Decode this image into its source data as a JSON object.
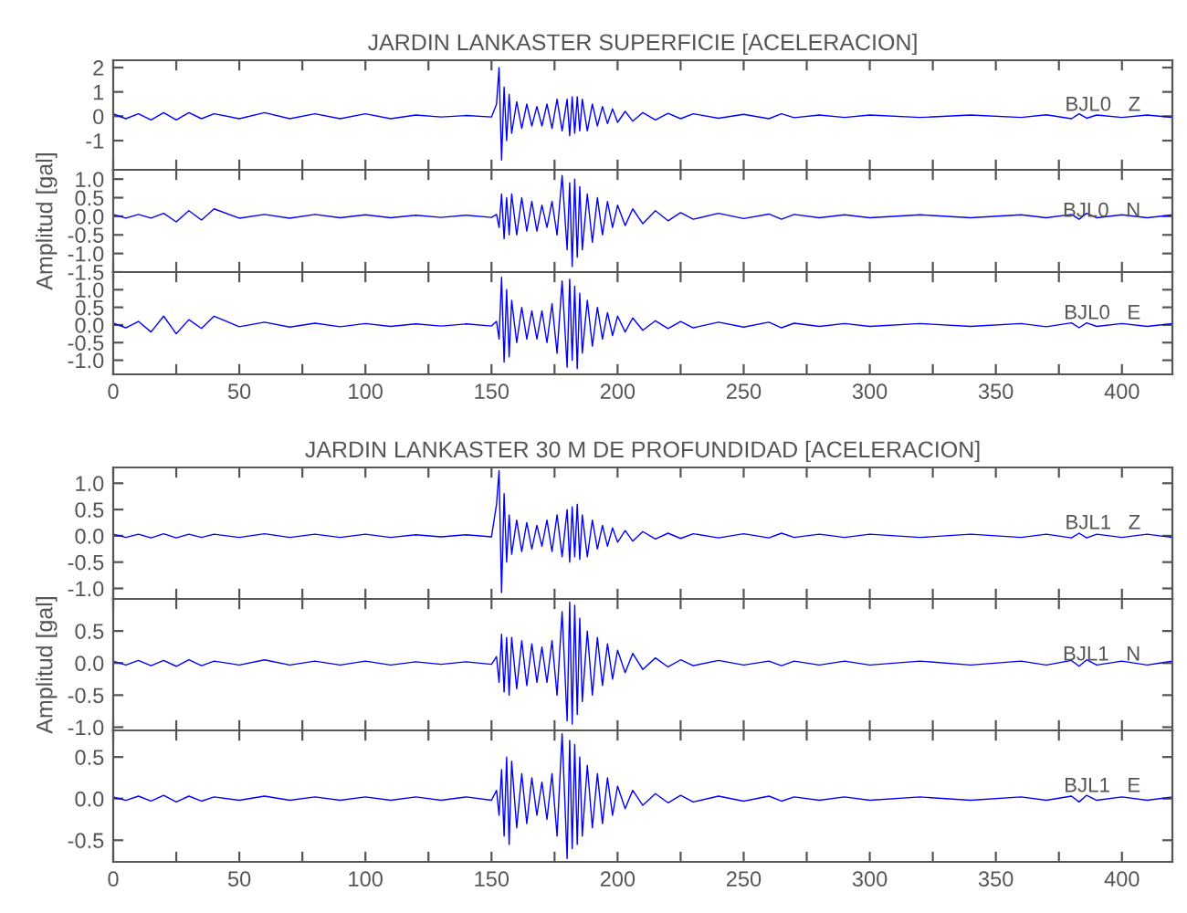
{
  "chart_data": [
    {
      "type": "line",
      "title": "JARDIN LANKASTER SUPERFICIE [ACELERACION]",
      "xlim": [
        0,
        420
      ],
      "ylim": [
        -2.2,
        2.3
      ],
      "yticks": [
        2,
        1,
        0,
        -1
      ],
      "tick_labels": "y",
      "grid": false,
      "legend": false,
      "marker": "none",
      "line_style": "solid",
      "xticks": [
        0,
        {
          "value": 25,
          "label": null
        },
        50,
        {
          "value": 75,
          "label": null
        },
        100,
        {
          "value": 125,
          "label": null
        },
        150,
        {
          "value": 175,
          "label": null
        },
        200,
        {
          "value": 225,
          "label": null
        },
        250,
        {
          "value": 275,
          "label": null
        },
        300,
        {
          "value": 325,
          "label": null
        },
        350,
        {
          "value": 375,
          "label": null
        },
        400
      ],
      "x": [
        0,
        5,
        10,
        15,
        20,
        25,
        30,
        35,
        40,
        50,
        60,
        70,
        80,
        90,
        100,
        110,
        120,
        130,
        140,
        150,
        152,
        153,
        154,
        155,
        156,
        157,
        158,
        160,
        162,
        164,
        166,
        168,
        170,
        172,
        174,
        176,
        178,
        180,
        181,
        182,
        183,
        184,
        185,
        186,
        188,
        190,
        192,
        194,
        196,
        198,
        200,
        203,
        206,
        210,
        215,
        220,
        225,
        230,
        240,
        250,
        260,
        265,
        270,
        280,
        290,
        300,
        320,
        340,
        360,
        370,
        380,
        383,
        386,
        390,
        400,
        410,
        420
      ],
      "series": [
        {
          "name": "BJL0   Z",
          "color": "#0000ff",
          "values": [
            0.1,
            -0.1,
            0.1,
            -0.15,
            0.15,
            -0.15,
            0.15,
            -0.1,
            0.1,
            -0.1,
            0.15,
            -0.1,
            0.1,
            -0.1,
            0.1,
            -0.1,
            0.05,
            -0.03,
            0.03,
            -0.03,
            0.5,
            2.0,
            -1.8,
            1.2,
            -1.0,
            0.9,
            -0.7,
            0.6,
            -0.5,
            0.5,
            -0.4,
            0.4,
            -0.4,
            0.5,
            -0.5,
            0.7,
            -0.6,
            0.7,
            -0.8,
            0.8,
            -0.7,
            0.8,
            -0.6,
            0.7,
            -0.6,
            0.5,
            -0.4,
            0.4,
            -0.3,
            0.3,
            -0.25,
            0.2,
            -0.2,
            0.15,
            -0.15,
            0.12,
            -0.1,
            0.1,
            -0.08,
            0.08,
            -0.1,
            0.1,
            -0.06,
            0.05,
            -0.05,
            0.05,
            -0.05,
            0.05,
            -0.05,
            0.06,
            -0.1,
            0.1,
            -0.08,
            0.05,
            -0.05,
            0.05,
            -0.05
          ]
        }
      ]
    },
    {
      "type": "line",
      "ylabel": "Amplitud [gal]",
      "xlim": [
        0,
        420
      ],
      "ylim": [
        -1.5,
        1.25
      ],
      "yticks": [
        {
          "value": 1,
          "label": "1.0"
        },
        0.5,
        {
          "value": 0,
          "label": "0.0"
        },
        -0.5,
        {
          "value": -1,
          "label": "-1.0"
        },
        -1.5
      ],
      "tick_labels": "y",
      "grid": false,
      "legend": false,
      "marker": "none",
      "line_style": "solid",
      "xticks": [
        0,
        {
          "value": 25,
          "label": null
        },
        50,
        {
          "value": 75,
          "label": null
        },
        100,
        {
          "value": 125,
          "label": null
        },
        150,
        {
          "value": 175,
          "label": null
        },
        200,
        {
          "value": 225,
          "label": null
        },
        250,
        {
          "value": 275,
          "label": null
        },
        300,
        {
          "value": 325,
          "label": null
        },
        350,
        {
          "value": 375,
          "label": null
        },
        400
      ],
      "x": [
        0,
        5,
        10,
        15,
        20,
        25,
        30,
        35,
        40,
        50,
        60,
        70,
        80,
        90,
        100,
        110,
        120,
        130,
        140,
        150,
        152,
        153,
        154,
        155,
        156,
        157,
        158,
        160,
        162,
        164,
        166,
        168,
        170,
        172,
        174,
        176,
        178,
        180,
        181,
        182,
        183,
        184,
        185,
        186,
        188,
        190,
        192,
        194,
        196,
        198,
        200,
        203,
        206,
        210,
        215,
        220,
        225,
        230,
        240,
        250,
        260,
        265,
        270,
        280,
        290,
        300,
        320,
        340,
        360,
        370,
        380,
        383,
        386,
        390,
        400,
        410,
        420
      ],
      "series": [
        {
          "name": "BJL0   N",
          "color": "#0000ff",
          "values": [
            0.05,
            -0.05,
            0.05,
            -0.05,
            0.08,
            -0.15,
            0.15,
            -0.1,
            0.2,
            -0.05,
            0.05,
            -0.05,
            0.05,
            -0.04,
            0.04,
            -0.04,
            0.03,
            -0.03,
            0.03,
            -0.03,
            0.05,
            -0.3,
            0.6,
            -0.6,
            0.5,
            -0.5,
            0.6,
            -0.5,
            0.5,
            -0.4,
            0.4,
            -0.4,
            0.3,
            -0.3,
            0.4,
            -0.5,
            1.1,
            -0.9,
            0.9,
            -1.35,
            1.0,
            -1.1,
            0.8,
            -0.9,
            0.6,
            -0.7,
            0.5,
            -0.5,
            0.4,
            -0.3,
            0.3,
            -0.25,
            0.2,
            -0.2,
            0.15,
            -0.12,
            0.1,
            -0.08,
            0.08,
            -0.06,
            0.06,
            -0.08,
            0.05,
            -0.04,
            0.04,
            -0.04,
            0.04,
            -0.04,
            0.04,
            -0.04,
            0.05,
            -0.08,
            0.08,
            -0.04,
            0.04,
            -0.04,
            0.04
          ]
        }
      ]
    },
    {
      "type": "line",
      "xlim": [
        0,
        420
      ],
      "ylim": [
        -1.4,
        1.5
      ],
      "yticks": [
        {
          "value": 1,
          "label": "1.0"
        },
        0.5,
        {
          "value": 0,
          "label": "0.0"
        },
        -0.5,
        {
          "value": -1,
          "label": "-1.0"
        }
      ],
      "grid": false,
      "legend": false,
      "marker": "none",
      "line_style": "solid",
      "xticks": [
        0,
        {
          "value": 25,
          "label": null
        },
        50,
        {
          "value": 75,
          "label": null
        },
        100,
        {
          "value": 125,
          "label": null
        },
        150,
        {
          "value": 175,
          "label": null
        },
        200,
        {
          "value": 225,
          "label": null
        },
        250,
        {
          "value": 275,
          "label": null
        },
        300,
        {
          "value": 325,
          "label": null
        },
        350,
        {
          "value": 375,
          "label": null
        },
        400
      ],
      "x": [
        0,
        5,
        10,
        15,
        20,
        25,
        30,
        35,
        40,
        50,
        60,
        70,
        80,
        90,
        100,
        110,
        120,
        130,
        140,
        150,
        152,
        153,
        154,
        155,
        156,
        157,
        158,
        160,
        162,
        164,
        166,
        168,
        170,
        172,
        174,
        176,
        178,
        180,
        181,
        182,
        183,
        184,
        185,
        186,
        188,
        190,
        192,
        194,
        196,
        198,
        200,
        203,
        206,
        210,
        215,
        220,
        225,
        230,
        240,
        250,
        260,
        265,
        270,
        280,
        290,
        300,
        320,
        340,
        360,
        370,
        380,
        383,
        386,
        390,
        400,
        410,
        420
      ],
      "series": [
        {
          "name": "BJL0   E",
          "color": "#0000ff",
          "values": [
            0.05,
            -0.08,
            0.1,
            -0.2,
            0.25,
            -0.25,
            0.15,
            -0.1,
            0.25,
            -0.05,
            0.08,
            -0.06,
            0.05,
            -0.05,
            0.04,
            -0.04,
            0.03,
            -0.03,
            0.03,
            -0.03,
            0.1,
            -0.4,
            1.35,
            -1.05,
            1.0,
            -0.9,
            0.7,
            -0.5,
            0.5,
            -0.4,
            0.4,
            -0.4,
            0.4,
            -0.5,
            0.6,
            -0.8,
            1.25,
            -1.2,
            1.3,
            -1.0,
            1.1,
            -1.24,
            0.9,
            -0.8,
            0.7,
            -0.6,
            0.5,
            -0.4,
            0.35,
            -0.3,
            0.25,
            -0.2,
            0.2,
            -0.15,
            0.12,
            -0.1,
            0.1,
            -0.08,
            0.08,
            -0.06,
            0.08,
            -0.08,
            0.05,
            -0.04,
            0.04,
            -0.04,
            0.04,
            -0.04,
            0.04,
            -0.05,
            0.06,
            -0.08,
            0.06,
            -0.04,
            0.04,
            -0.04,
            0.04
          ]
        }
      ]
    },
    {
      "type": "line",
      "title": "JARDIN LANKASTER 30 M DE PROFUNDIDAD [ACELERACION]",
      "xlim": [
        0,
        420
      ],
      "ylim": [
        -1.2,
        1.3
      ],
      "yticks": [
        {
          "value": 1,
          "label": "1.0"
        },
        0.5,
        {
          "value": 0,
          "label": "0.0"
        },
        -0.5,
        {
          "value": -1,
          "label": "-1.0"
        }
      ],
      "tick_labels": "y",
      "grid": false,
      "legend": false,
      "marker": "none",
      "line_style": "solid",
      "xticks": [
        0,
        {
          "value": 25,
          "label": null
        },
        50,
        {
          "value": 75,
          "label": null
        },
        100,
        {
          "value": 125,
          "label": null
        },
        150,
        {
          "value": 175,
          "label": null
        },
        200,
        {
          "value": 225,
          "label": null
        },
        250,
        {
          "value": 275,
          "label": null
        },
        300,
        {
          "value": 325,
          "label": null
        },
        350,
        {
          "value": 375,
          "label": null
        },
        400
      ],
      "x": [
        0,
        5,
        10,
        15,
        20,
        25,
        30,
        35,
        40,
        50,
        60,
        70,
        80,
        90,
        100,
        110,
        120,
        130,
        140,
        150,
        152,
        153,
        154,
        155,
        156,
        157,
        158,
        160,
        162,
        164,
        166,
        168,
        170,
        172,
        174,
        176,
        178,
        180,
        181,
        182,
        183,
        184,
        185,
        186,
        188,
        190,
        192,
        194,
        196,
        198,
        200,
        203,
        206,
        210,
        215,
        220,
        225,
        230,
        240,
        250,
        260,
        265,
        270,
        280,
        290,
        300,
        320,
        340,
        360,
        370,
        380,
        383,
        386,
        390,
        400,
        410,
        420
      ],
      "series": [
        {
          "name": "BJL1   Z",
          "color": "#0000ff",
          "values": [
            0.03,
            -0.03,
            0.03,
            -0.04,
            0.04,
            -0.04,
            0.03,
            -0.03,
            0.03,
            -0.03,
            0.04,
            -0.03,
            0.03,
            -0.03,
            0.03,
            -0.03,
            0.02,
            -0.02,
            0.02,
            -0.02,
            0.6,
            1.24,
            -1.08,
            0.8,
            -0.5,
            0.4,
            -0.35,
            0.3,
            -0.3,
            0.25,
            -0.25,
            0.2,
            -0.2,
            0.3,
            -0.3,
            0.4,
            -0.4,
            0.5,
            -0.5,
            0.55,
            -0.4,
            0.6,
            -0.45,
            0.4,
            -0.4,
            0.3,
            -0.25,
            0.2,
            -0.2,
            0.15,
            -0.12,
            0.1,
            -0.1,
            0.08,
            -0.06,
            0.05,
            -0.05,
            0.04,
            -0.04,
            0.04,
            -0.04,
            0.05,
            -0.03,
            0.03,
            -0.03,
            0.03,
            -0.03,
            0.03,
            -0.03,
            0.03,
            -0.04,
            0.05,
            -0.04,
            0.03,
            -0.03,
            0.03,
            -0.03
          ]
        }
      ]
    },
    {
      "type": "line",
      "ylabel": "Amplitud [gal]",
      "xlim": [
        0,
        420
      ],
      "ylim": [
        -1.05,
        1.0
      ],
      "yticks": [
        0.5,
        {
          "value": 0,
          "label": "0.0"
        },
        -0.5,
        {
          "value": -1,
          "label": "-1.0"
        }
      ],
      "tick_labels": "y",
      "grid": false,
      "legend": false,
      "marker": "none",
      "line_style": "solid",
      "xticks": [
        0,
        {
          "value": 25,
          "label": null
        },
        50,
        {
          "value": 75,
          "label": null
        },
        100,
        {
          "value": 125,
          "label": null
        },
        150,
        {
          "value": 175,
          "label": null
        },
        200,
        {
          "value": 225,
          "label": null
        },
        250,
        {
          "value": 275,
          "label": null
        },
        300,
        {
          "value": 325,
          "label": null
        },
        350,
        {
          "value": 375,
          "label": null
        },
        400
      ],
      "x": [
        0,
        5,
        10,
        15,
        20,
        25,
        30,
        35,
        40,
        50,
        60,
        70,
        80,
        90,
        100,
        110,
        120,
        130,
        140,
        150,
        152,
        153,
        154,
        155,
        156,
        157,
        158,
        160,
        162,
        164,
        166,
        168,
        170,
        172,
        174,
        176,
        178,
        180,
        181,
        182,
        183,
        184,
        185,
        186,
        188,
        190,
        192,
        194,
        196,
        198,
        200,
        203,
        206,
        210,
        215,
        220,
        225,
        230,
        240,
        250,
        260,
        265,
        270,
        280,
        290,
        300,
        320,
        340,
        360,
        370,
        380,
        383,
        386,
        390,
        400,
        410,
        420
      ],
      "series": [
        {
          "name": "BJL1   N",
          "color": "#0000ff",
          "values": [
            0.03,
            -0.03,
            0.04,
            -0.04,
            0.04,
            -0.05,
            0.05,
            -0.04,
            0.03,
            -0.03,
            0.05,
            -0.03,
            0.03,
            -0.03,
            0.03,
            -0.03,
            0.02,
            -0.02,
            0.02,
            -0.02,
            0.1,
            -0.3,
            0.45,
            -0.45,
            0.4,
            -0.5,
            0.4,
            -0.4,
            0.35,
            -0.35,
            0.3,
            -0.3,
            0.25,
            -0.3,
            0.35,
            -0.5,
            0.8,
            -0.9,
            0.95,
            -0.95,
            0.9,
            -0.8,
            0.7,
            -0.6,
            0.5,
            -0.5,
            0.4,
            -0.35,
            0.3,
            -0.25,
            0.2,
            -0.15,
            0.15,
            -0.1,
            0.08,
            -0.06,
            0.05,
            -0.04,
            0.04,
            -0.03,
            0.03,
            -0.04,
            0.03,
            -0.03,
            0.03,
            -0.03,
            0.03,
            -0.03,
            0.03,
            -0.03,
            0.04,
            -0.05,
            0.05,
            -0.03,
            0.03,
            -0.03,
            0.03
          ]
        }
      ]
    },
    {
      "type": "line",
      "xlim": [
        0,
        420
      ],
      "ylim": [
        -0.76,
        0.82
      ],
      "yticks": [
        0.5,
        {
          "value": 0,
          "label": "0.0"
        },
        -0.5
      ],
      "grid": false,
      "legend": false,
      "marker": "none",
      "line_style": "solid",
      "xticks": [
        0,
        {
          "value": 25,
          "label": null
        },
        50,
        {
          "value": 75,
          "label": null
        },
        100,
        {
          "value": 125,
          "label": null
        },
        150,
        {
          "value": 175,
          "label": null
        },
        200,
        {
          "value": 225,
          "label": null
        },
        250,
        {
          "value": 275,
          "label": null
        },
        300,
        {
          "value": 325,
          "label": null
        },
        350,
        {
          "value": 375,
          "label": null
        },
        400
      ],
      "x": [
        0,
        5,
        10,
        15,
        20,
        25,
        30,
        35,
        40,
        50,
        60,
        70,
        80,
        90,
        100,
        110,
        120,
        130,
        140,
        150,
        152,
        153,
        154,
        155,
        156,
        157,
        158,
        160,
        162,
        164,
        166,
        168,
        170,
        172,
        174,
        176,
        178,
        180,
        181,
        182,
        183,
        184,
        185,
        186,
        188,
        190,
        192,
        194,
        196,
        198,
        200,
        203,
        206,
        210,
        215,
        220,
        225,
        230,
        240,
        250,
        260,
        265,
        270,
        280,
        290,
        300,
        320,
        340,
        360,
        370,
        380,
        383,
        386,
        390,
        400,
        410,
        420
      ],
      "series": [
        {
          "name": "BJL1   E",
          "color": "#0000ff",
          "values": [
            0.02,
            -0.02,
            0.03,
            -0.03,
            0.04,
            -0.04,
            0.03,
            -0.03,
            0.02,
            -0.02,
            0.03,
            -0.02,
            0.02,
            -0.02,
            0.02,
            -0.02,
            0.02,
            -0.02,
            0.02,
            -0.02,
            0.1,
            -0.2,
            0.35,
            -0.45,
            0.5,
            -0.55,
            0.45,
            -0.35,
            0.3,
            -0.3,
            0.25,
            -0.2,
            0.2,
            -0.25,
            0.3,
            -0.45,
            0.78,
            -0.72,
            0.7,
            -0.6,
            0.65,
            -0.55,
            0.5,
            -0.45,
            0.4,
            -0.35,
            0.3,
            -0.3,
            0.25,
            -0.2,
            0.15,
            -0.12,
            0.1,
            -0.08,
            0.06,
            -0.05,
            0.04,
            -0.04,
            0.03,
            -0.03,
            0.03,
            -0.03,
            0.02,
            -0.02,
            0.02,
            -0.02,
            0.02,
            -0.02,
            0.02,
            -0.02,
            0.03,
            -0.04,
            0.04,
            -0.02,
            0.02,
            -0.02,
            0.02
          ]
        }
      ]
    }
  ]
}
